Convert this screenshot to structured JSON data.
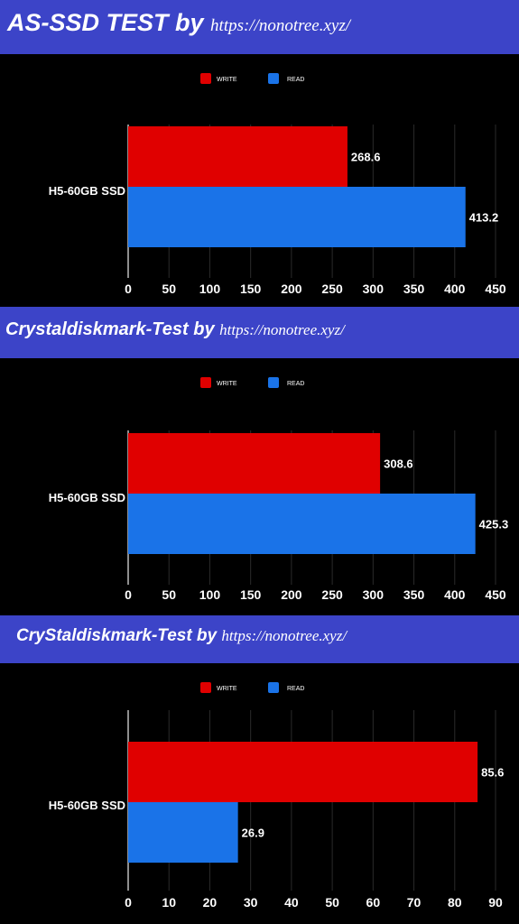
{
  "banners": [
    {
      "title": "AS-SSD TEST  by",
      "site": "https://nonotree.xyz/"
    },
    {
      "title": "Crystaldiskmark-Test by",
      "site": "https://nonotree.xyz/"
    },
    {
      "title": "CryStaldiskmark-Test by",
      "site": "https://nonotree.xyz/"
    }
  ],
  "colors": {
    "write": "#e00000",
    "read": "#1a73e8",
    "banner": "#3c44c8",
    "background": "#000000"
  },
  "chart_data": [
    {
      "type": "bar",
      "orientation": "horizontal",
      "categories": [
        "H5-60GB SSD"
      ],
      "series": [
        {
          "name": "WRITE",
          "values": [
            268.6
          ]
        },
        {
          "name": "READ",
          "values": [
            413.2
          ]
        }
      ],
      "xlim": [
        0,
        450
      ],
      "xticks": [
        0,
        50,
        100,
        150,
        200,
        250,
        300,
        350,
        400,
        450
      ],
      "legend": "top-center",
      "grid": true
    },
    {
      "type": "bar",
      "orientation": "horizontal",
      "categories": [
        "H5-60GB SSD"
      ],
      "series": [
        {
          "name": "WRITE",
          "values": [
            308.6
          ]
        },
        {
          "name": "READ",
          "values": [
            425.3
          ]
        }
      ],
      "xlim": [
        0,
        450
      ],
      "xticks": [
        0,
        50,
        100,
        150,
        200,
        250,
        300,
        350,
        400,
        450
      ],
      "legend": "top-center",
      "grid": true
    },
    {
      "type": "bar",
      "orientation": "horizontal",
      "categories": [
        "H5-60GB SSD"
      ],
      "series": [
        {
          "name": "WRITE",
          "values": [
            85.6
          ]
        },
        {
          "name": "READ",
          "values": [
            26.9
          ]
        }
      ],
      "xlim": [
        0,
        90
      ],
      "xticks": [
        0,
        10,
        20,
        30,
        40,
        50,
        60,
        70,
        80,
        90
      ],
      "legend": "top-center",
      "grid": true
    }
  ]
}
